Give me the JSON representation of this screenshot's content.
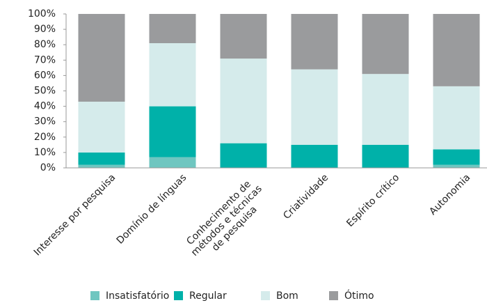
{
  "chart_data": {
    "type": "stacked_bar",
    "categories": [
      "Interesse por pesquisa",
      "Domínio de línguas",
      "Conhecimento de métodos e técnicas de pesquisa",
      "Criatividade",
      "Espírito crítico",
      "Autonomia"
    ],
    "series": [
      {
        "name": "Insatisfatório",
        "color": "#6fc6c0",
        "values": [
          2,
          7,
          0,
          0,
          0,
          2
        ]
      },
      {
        "name": "Regular",
        "color": "#00b1a9",
        "values": [
          8,
          33,
          16,
          15,
          15,
          10
        ]
      },
      {
        "name": "Bom",
        "color": "#d5ebeb",
        "values": [
          33,
          41,
          55,
          49,
          46,
          41
        ]
      },
      {
        "name": "Ótimo",
        "color": "#9a9b9d",
        "values": [
          57,
          19,
          29,
          36,
          39,
          47
        ]
      }
    ],
    "ylim": [
      0,
      100
    ],
    "yticks": [
      {
        "value": 0,
        "label": "0%"
      },
      {
        "value": 10,
        "label": "10%"
      },
      {
        "value": 20,
        "label": "20%"
      },
      {
        "value": 30,
        "label": "30%"
      },
      {
        "value": 40,
        "label": "40%"
      },
      {
        "value": 50,
        "label": "50%"
      },
      {
        "value": 60,
        "label": "60%"
      },
      {
        "value": 70,
        "label": "70%"
      },
      {
        "value": 80,
        "label": "80%"
      },
      {
        "value": 90,
        "label": "90%"
      },
      {
        "value": 100,
        "label": "100%"
      }
    ],
    "legend": "bottom"
  }
}
